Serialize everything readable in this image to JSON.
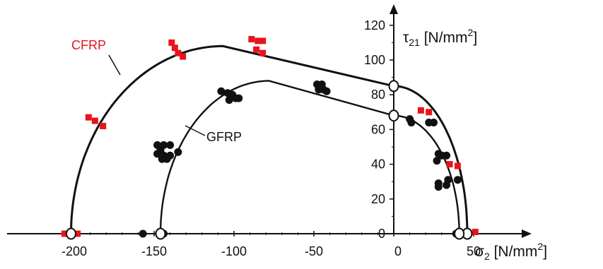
{
  "chart_data": {
    "type": "scatter",
    "x_axis": {
      "label_symbol": "σ",
      "label_sub": "2",
      "label_unit": " [N/mm",
      "label_sup": "2",
      "label_close": "]",
      "range": [
        -210,
        60
      ],
      "ticks": [
        -200,
        -150,
        -100,
        -50,
        0,
        50
      ],
      "tick_labels": [
        "-200",
        "-150",
        "-100",
        "-50",
        "0",
        "50"
      ]
    },
    "y_axis": {
      "label_symbol": "τ",
      "label_sub": "21",
      "label_unit": " [N/mm",
      "label_sup": "2",
      "label_close": "]",
      "range": [
        0,
        128
      ],
      "ticks": [
        0,
        20,
        40,
        60,
        80,
        100,
        120
      ],
      "tick_labels": [
        "0",
        "20",
        "40",
        "60",
        "80",
        "100",
        "120"
      ]
    },
    "grid": false,
    "series": [
      {
        "name": "CFRP",
        "color": "#e8141b",
        "marker": "square",
        "points": [
          [
            -206,
            0
          ],
          [
            -198,
            0
          ],
          [
            -191,
            67
          ],
          [
            -187,
            65
          ],
          [
            -182,
            62
          ],
          [
            -139,
            110
          ],
          [
            -137,
            107
          ],
          [
            -135,
            104
          ],
          [
            -132,
            102
          ],
          [
            -89,
            112
          ],
          [
            -85,
            111
          ],
          [
            -82,
            111
          ],
          [
            -86,
            106
          ],
          [
            -82,
            104
          ],
          [
            0,
            85
          ],
          [
            17,
            71
          ],
          [
            22,
            70
          ],
          [
            35,
            40
          ],
          [
            40,
            39
          ],
          [
            51,
            1
          ]
        ],
        "envelope": {
          "left_x": -202,
          "apex_x": -107,
          "apex_y": 108,
          "shear_x": 0,
          "shear_y": 85,
          "right_x": 46
        },
        "hollow_points": [
          [
            -202,
            0
          ],
          [
            0,
            85
          ],
          [
            46,
            0
          ]
        ]
      },
      {
        "name": "GFRP",
        "color": "#111111",
        "marker": "circle",
        "points": [
          [
            -157,
            0
          ],
          [
            -147,
            0
          ],
          [
            -146,
            0
          ],
          [
            -145,
            0
          ],
          [
            -144,
            0
          ],
          [
            -146,
            1
          ],
          [
            -148,
            51
          ],
          [
            -144,
            51
          ],
          [
            -140,
            51
          ],
          [
            -146,
            48
          ],
          [
            -148,
            46
          ],
          [
            -144,
            45
          ],
          [
            -140,
            45
          ],
          [
            -145,
            43
          ],
          [
            -142,
            43
          ],
          [
            -135,
            47
          ],
          [
            -108,
            82
          ],
          [
            -104,
            81
          ],
          [
            -101,
            80
          ],
          [
            -99,
            78
          ],
          [
            -103,
            77
          ],
          [
            -97,
            78
          ],
          [
            -48,
            86
          ],
          [
            -46,
            85
          ],
          [
            -44,
            83
          ],
          [
            -42,
            82
          ],
          [
            -47,
            83
          ],
          [
            -45,
            86
          ],
          [
            10,
            66
          ],
          [
            11,
            64
          ],
          [
            22,
            64
          ],
          [
            25,
            64
          ],
          [
            28,
            46
          ],
          [
            30,
            45
          ],
          [
            33,
            45
          ],
          [
            27,
            42
          ],
          [
            28,
            29
          ],
          [
            28,
            27
          ],
          [
            34,
            31
          ],
          [
            33,
            28
          ],
          [
            40,
            31
          ],
          [
            39,
            0
          ],
          [
            41,
            0
          ]
        ],
        "envelope": {
          "left_x": -146,
          "apex_x": -78,
          "apex_y": 88,
          "shear_x": 0,
          "shear_y": 68,
          "right_x": 41
        },
        "hollow_points": [
          [
            -146,
            0
          ],
          [
            0,
            68
          ],
          [
            41,
            0
          ]
        ]
      }
    ]
  }
}
